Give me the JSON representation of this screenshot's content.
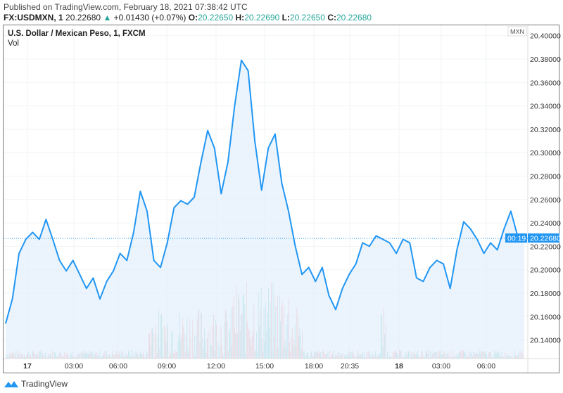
{
  "header": {
    "published": "Published on TradingView.com, February 18, 2021 07:38:42 UTC",
    "symbol": "FX:USDMXN, 1",
    "last": "20.22680",
    "change": "+0.01430 (+0.07%)",
    "o_label": "O:",
    "o": "20.22650",
    "h_label": "H:",
    "h": "20.22690",
    "l_label": "L:",
    "l": "20.22650",
    "c_label": "C:",
    "c": "20.22680"
  },
  "chart_title": "U.S. Dollar / Mexican Peso, 1, FXCM",
  "volume_label": "Vol",
  "currency_badge": "MXN",
  "price_tag": "20.22680",
  "countdown": "00:19",
  "footer": {
    "brand": "TradingView"
  },
  "colors": {
    "line": "#2196f3",
    "up": "#26a69a",
    "down": "#ef5350",
    "fill": "#e3f0fc"
  },
  "chart_data": {
    "type": "area",
    "title": "U.S. Dollar / Mexican Peso, 1, FXCM",
    "ylim": [
      20.125,
      20.41
    ],
    "y_ticks": [
      "20.40000",
      "20.38000",
      "20.36000",
      "20.34000",
      "20.32000",
      "20.30000",
      "20.28000",
      "20.26000",
      "20.24000",
      "20.22000",
      "20.20000",
      "20.18000",
      "20.16000",
      "20.14000"
    ],
    "x_ticks": [
      {
        "label": "17",
        "bold": true
      },
      {
        "label": "03:00"
      },
      {
        "label": "06:00"
      },
      {
        "label": "09:00"
      },
      {
        "label": "12:00"
      },
      {
        "label": "15:00"
      },
      {
        "label": "18:00"
      },
      {
        "label": "20:35"
      },
      {
        "label": "18",
        "bold": true
      },
      {
        "label": "03:00"
      },
      {
        "label": "06:00"
      }
    ],
    "grid": true,
    "series": [
      {
        "values": [
          20.154,
          20.175,
          20.214,
          20.226,
          20.232,
          20.226,
          20.243,
          20.226,
          20.208,
          20.199,
          20.208,
          20.196,
          20.184,
          20.193,
          20.175,
          20.19,
          20.199,
          20.214,
          20.208,
          20.232,
          20.267,
          20.25,
          20.208,
          20.202,
          20.223,
          20.253,
          20.259,
          20.256,
          20.262,
          20.292,
          20.319,
          20.304,
          20.265,
          20.292,
          20.34,
          20.379,
          20.37,
          20.31,
          20.268,
          20.304,
          20.316,
          20.274,
          20.25,
          20.22,
          20.196,
          20.202,
          20.19,
          20.202,
          20.178,
          20.166,
          20.184,
          20.196,
          20.205,
          20.223,
          20.22,
          20.229,
          20.226,
          20.223,
          20.214,
          20.226,
          20.223,
          20.193,
          20.19,
          20.202,
          20.208,
          20.205,
          20.184,
          20.217,
          20.241,
          20.235,
          20.226,
          20.214,
          20.223,
          20.217,
          20.235,
          20.25,
          20.229,
          20.226
        ]
      }
    ]
  }
}
